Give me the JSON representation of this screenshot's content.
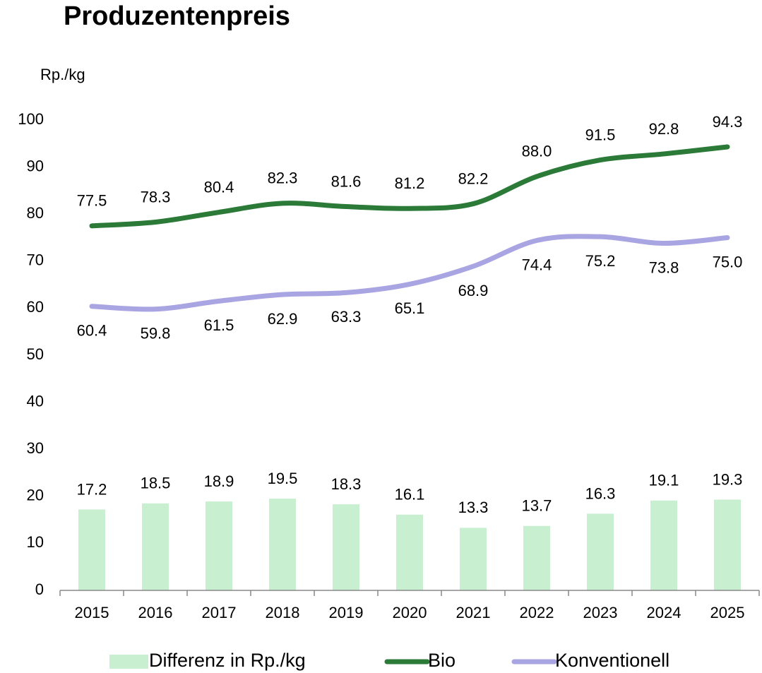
{
  "chart_data": {
    "type": "combo",
    "title": "Produzentenpreis",
    "y_label": "Rp./kg",
    "categories": [
      "2015",
      "2016",
      "2017",
      "2018",
      "2019",
      "2020",
      "2021",
      "2022",
      "2023",
      "2024",
      "2025"
    ],
    "ylim": [
      0,
      100
    ],
    "yticks": [
      0,
      10,
      20,
      30,
      40,
      50,
      60,
      70,
      80,
      90,
      100
    ],
    "grid": false,
    "legend": "bottom",
    "series": [
      {
        "name": "Differenz in Rp./kg",
        "type": "bar",
        "color": "#c8efcf",
        "values": [
          17.2,
          18.5,
          18.9,
          19.5,
          18.3,
          16.1,
          13.3,
          13.7,
          16.3,
          19.1,
          19.3
        ],
        "value_labels": [
          "17.2",
          "18.5",
          "18.9",
          "19.5",
          "18.3",
          "16.1",
          "13.3",
          "13.7",
          "16.3",
          "19.1",
          "19.3"
        ]
      },
      {
        "name": "Bio",
        "type": "line",
        "color": "#2b7a38",
        "values": [
          77.5,
          78.3,
          80.4,
          82.3,
          81.6,
          81.2,
          82.2,
          88.0,
          91.5,
          92.8,
          94.3
        ],
        "value_labels": [
          "77.5",
          "78.3",
          "80.4",
          "82.3",
          "81.6",
          "81.2",
          "82.2",
          "88.0",
          "91.5",
          "92.8",
          "94.3"
        ]
      },
      {
        "name": "Konventionell",
        "type": "line",
        "color": "#a9a4e2",
        "values": [
          60.4,
          59.8,
          61.5,
          62.9,
          63.3,
          65.1,
          68.9,
          74.4,
          75.2,
          73.8,
          75.0
        ],
        "value_labels": [
          "60.4",
          "59.8",
          "61.5",
          "62.9",
          "63.3",
          "65.1",
          "68.9",
          "74.4",
          "75.2",
          "73.8",
          "75.0"
        ]
      }
    ]
  }
}
